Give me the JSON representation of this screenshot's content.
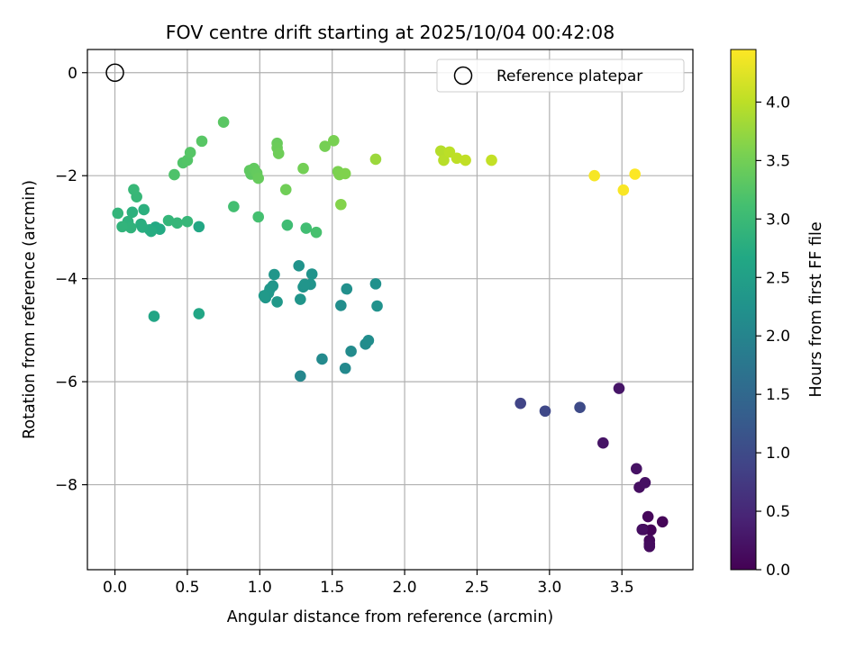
{
  "chart_data": {
    "type": "scatter",
    "title": "FOV centre drift starting at 2025/10/04 00:42:08",
    "xlabel": "Angular distance from reference (arcmin)",
    "ylabel": "Rotation from reference (arcmin)",
    "xlim": [
      -0.19,
      3.99
    ],
    "ylim": [
      -9.65,
      0.45
    ],
    "xticks": [
      0.0,
      0.5,
      1.0,
      1.5,
      2.0,
      2.5,
      3.0,
      3.5
    ],
    "xtick_labels": [
      "0.0",
      "0.5",
      "1.0",
      "1.5",
      "2.0",
      "2.5",
      "3.0",
      "3.5"
    ],
    "yticks": [
      0,
      -2,
      -4,
      -6,
      -8
    ],
    "ytick_labels": [
      "0",
      "−2",
      "−4",
      "−6",
      "−8"
    ],
    "grid": true,
    "colormap": "viridis",
    "colorbar": {
      "label": "Hours from first FF file",
      "range": [
        0.0,
        4.45
      ],
      "ticks": [
        0.0,
        0.5,
        1.0,
        1.5,
        2.0,
        2.5,
        3.0,
        3.5,
        4.0
      ],
      "tick_labels": [
        "0.0",
        "0.5",
        "1.0",
        "1.5",
        "2.0",
        "2.5",
        "3.0",
        "3.5",
        "4.0"
      ]
    },
    "legend": {
      "location": "top-right",
      "entries": [
        "Reference platepar"
      ]
    },
    "reference_point": {
      "x": 0.0,
      "y": 0.0,
      "label": "Reference platepar"
    },
    "series": [
      {
        "name": "FOV centre",
        "x": [
          3.65,
          3.7,
          3.78,
          3.68,
          3.69,
          3.69,
          3.69,
          3.64,
          3.62,
          3.66,
          3.6,
          3.37,
          3.48,
          2.8,
          2.97,
          3.21,
          1.28,
          1.59,
          1.43,
          1.63,
          1.73,
          1.75,
          1.56,
          1.6,
          1.8,
          1.81,
          1.27,
          1.36,
          1.35,
          1.3,
          1.31,
          1.28,
          1.1,
          1.09,
          1.07,
          1.04,
          1.06,
          1.12,
          1.03,
          0.27,
          0.58,
          0.58,
          0.28,
          0.31,
          0.24,
          0.25,
          0.19,
          0.18,
          0.2,
          0.12,
          0.09,
          0.11,
          0.05,
          0.02,
          0.37,
          0.43,
          0.5,
          0.15,
          0.13,
          1.19,
          1.32,
          0.82,
          0.99,
          1.39,
          0.41,
          0.47,
          0.5,
          0.52,
          0.6,
          0.75,
          0.94,
          0.93,
          0.96,
          0.98,
          0.99,
          1.12,
          1.12,
          1.13,
          1.18,
          1.3,
          1.45,
          1.51,
          1.54,
          1.55,
          1.59,
          1.56,
          1.8,
          2.25,
          2.27,
          2.31,
          2.36,
          2.42,
          2.6,
          3.31,
          3.51,
          3.59
        ],
        "y": [
          -8.87,
          -8.88,
          -8.72,
          -8.62,
          -9.08,
          -9.15,
          -9.2,
          -8.87,
          -8.05,
          -7.96,
          -7.69,
          -7.19,
          -6.13,
          -6.42,
          -6.57,
          -6.5,
          -5.89,
          -5.74,
          -5.56,
          -5.41,
          -5.27,
          -5.2,
          -4.52,
          -4.2,
          -4.1,
          -4.53,
          -3.75,
          -3.91,
          -4.11,
          -4.16,
          -4.11,
          -4.4,
          -3.92,
          -4.14,
          -4.2,
          -4.37,
          -4.28,
          -4.45,
          -4.33,
          -4.73,
          -4.68,
          -2.99,
          -3.0,
          -3.04,
          -3.05,
          -3.08,
          -3.0,
          -2.94,
          -2.66,
          -2.71,
          -2.89,
          -3.01,
          -2.99,
          -2.73,
          -2.87,
          -2.92,
          -2.89,
          -2.41,
          -2.27,
          -2.96,
          -3.02,
          -2.6,
          -2.8,
          -3.1,
          -1.98,
          -1.75,
          -1.7,
          -1.55,
          -1.33,
          -0.96,
          -1.97,
          -1.9,
          -1.86,
          -1.95,
          -2.05,
          -1.37,
          -1.46,
          -1.57,
          -2.27,
          -1.86,
          -1.43,
          -1.32,
          -1.92,
          -1.98,
          -1.96,
          -2.56,
          -1.68,
          -1.52,
          -1.7,
          -1.54,
          -1.66,
          -1.7,
          -1.7,
          -2.0,
          -2.28,
          -1.97
        ],
        "hours": [
          0.02,
          0.04,
          0.06,
          0.08,
          0.1,
          0.12,
          0.14,
          0.16,
          0.18,
          0.2,
          0.22,
          0.24,
          0.26,
          0.9,
          0.95,
          1.0,
          2.05,
          2.08,
          2.1,
          2.12,
          2.14,
          2.16,
          2.18,
          2.2,
          2.22,
          2.24,
          2.26,
          2.27,
          2.28,
          2.29,
          2.3,
          2.31,
          2.32,
          2.33,
          2.34,
          2.35,
          2.36,
          2.37,
          2.38,
          2.62,
          2.64,
          2.66,
          2.68,
          2.7,
          2.72,
          2.74,
          2.76,
          2.78,
          2.8,
          2.82,
          2.84,
          2.86,
          2.88,
          2.9,
          2.92,
          2.93,
          2.94,
          2.95,
          2.96,
          3.05,
          3.08,
          3.1,
          3.12,
          3.14,
          3.2,
          3.22,
          3.24,
          3.26,
          3.28,
          3.3,
          3.32,
          3.34,
          3.36,
          3.38,
          3.4,
          3.42,
          3.44,
          3.46,
          3.48,
          3.5,
          3.52,
          3.54,
          3.56,
          3.58,
          3.6,
          3.62,
          3.78,
          3.95,
          3.97,
          3.99,
          4.01,
          4.03,
          4.05,
          4.4,
          4.42,
          4.44
        ]
      }
    ]
  }
}
